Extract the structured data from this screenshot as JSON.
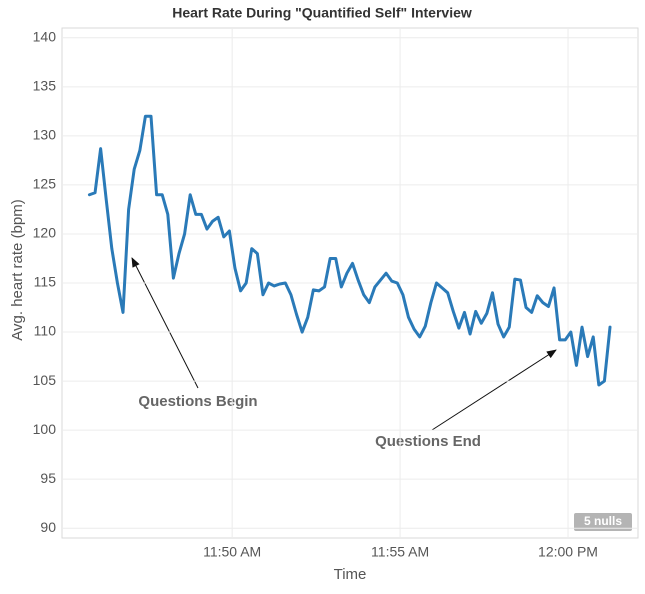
{
  "chart_data": {
    "type": "line",
    "title": "Heart Rate During \"Quantified Self\" Interview",
    "x_label": "Time",
    "y_label": "Avg. heart rate (bpm)",
    "x": [
      "11:45:45",
      "11:45:55",
      "11:46:05",
      "11:46:15",
      "11:46:25",
      "11:46:35",
      "11:46:45",
      "11:46:55",
      "11:47:05",
      "11:47:15",
      "11:47:25",
      "11:47:35",
      "11:47:45",
      "11:47:55",
      "11:48:05",
      "11:48:15",
      "11:48:25",
      "11:48:35",
      "11:48:45",
      "11:48:55",
      "11:49:05",
      "11:49:15",
      "11:49:25",
      "11:49:35",
      "11:49:45",
      "11:49:55",
      "11:50:05",
      "11:50:15",
      "11:50:25",
      "11:50:35",
      "11:50:45",
      "11:50:55",
      "11:51:05",
      "11:51:15",
      "11:51:25",
      "11:51:35",
      "11:51:45",
      "11:51:55",
      "11:52:05",
      "11:52:15",
      "11:52:25",
      "11:52:35",
      "11:52:45",
      "11:52:55",
      "11:53:05",
      "11:53:15",
      "11:53:25",
      "11:53:35",
      "11:53:45",
      "11:53:55",
      "11:54:05",
      "11:54:15",
      "11:54:25",
      "11:54:35",
      "11:54:45",
      "11:54:55",
      "11:55:05",
      "11:55:15",
      "11:55:25",
      "11:55:35",
      "11:55:45",
      "11:55:55",
      "11:56:05",
      "11:56:15",
      "11:56:25",
      "11:56:35",
      "11:56:45",
      "11:56:55",
      "11:57:05",
      "11:57:15",
      "11:57:25",
      "11:57:35",
      "11:57:45",
      "11:57:55",
      "11:58:05",
      "11:58:15",
      "11:58:25",
      "11:58:35",
      "11:58:45",
      "11:58:55",
      "11:59:05",
      "11:59:15",
      "11:59:25",
      "11:59:35",
      "11:59:45",
      "11:59:55",
      "12:00:05",
      "12:00:15",
      "12:00:25",
      "12:00:35",
      "12:00:45",
      "12:00:55",
      "12:01:05",
      "12:01:15"
    ],
    "values": [
      124,
      124.2,
      128.7,
      123.5,
      118.5,
      115,
      112,
      122.5,
      126.6,
      128.5,
      132,
      132,
      124,
      124,
      122,
      115.5,
      118,
      120,
      124,
      122,
      122,
      120.5,
      121.3,
      121.7,
      119.7,
      120.3,
      116.5,
      114.2,
      115,
      118.5,
      118,
      113.8,
      115,
      114.7,
      114.9,
      115,
      113.8,
      111.8,
      110,
      111.5,
      114.3,
      114.2,
      114.6,
      117.5,
      117.5,
      114.6,
      116,
      117,
      115.3,
      113.8,
      113,
      114.6,
      115.3,
      116,
      115.2,
      115,
      113.8,
      111.5,
      110.3,
      109.5,
      110.6,
      113,
      115,
      114.5,
      114,
      112.1,
      110.4,
      112,
      109.8,
      112.1,
      110.9,
      111.9,
      114,
      110.8,
      109.5,
      110.5,
      115.4,
      115.3,
      112.5,
      112,
      113.7,
      113,
      112.6,
      114.5,
      109.2,
      109.2,
      110,
      106.6,
      110.5,
      107.5,
      109.5,
      104.6,
      105,
      110.5
    ],
    "color": "#2a7ab8",
    "xlim": [
      "11:44:56",
      "12:02:05"
    ],
    "xticks": [
      {
        "value": "11:50:00",
        "label": "11:50 AM"
      },
      {
        "value": "11:55:00",
        "label": "11:55 AM"
      },
      {
        "value": "12:00:00",
        "label": "12:00 PM"
      }
    ],
    "ylim": [
      89,
      141
    ],
    "yticks": [
      90,
      95,
      100,
      105,
      110,
      115,
      120,
      125,
      130,
      135,
      140
    ],
    "grid": true,
    "annotations": [
      "Questions Begin",
      "Questions End"
    ],
    "nulls_indicator": "5 nulls"
  }
}
